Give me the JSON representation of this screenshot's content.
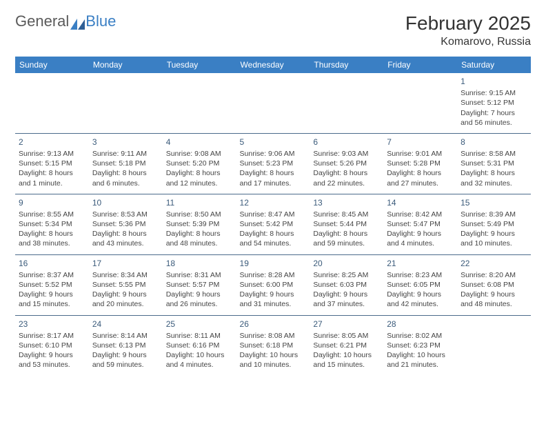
{
  "logo": {
    "word1": "General",
    "word2": "Blue"
  },
  "title": {
    "month": "February 2025",
    "location": "Komarovo, Russia"
  },
  "colors": {
    "header_bg": "#3a7fc4",
    "header_fg": "#ffffff",
    "rule": "#4a6a8a",
    "text": "#444444",
    "daynum": "#3a5a7a",
    "logo_gray": "#5a5a5a",
    "logo_blue": "#3a7fc4",
    "page_bg": "#ffffff"
  },
  "weekdays": [
    "Sunday",
    "Monday",
    "Tuesday",
    "Wednesday",
    "Thursday",
    "Friday",
    "Saturday"
  ],
  "weeks": [
    [
      null,
      null,
      null,
      null,
      null,
      null,
      {
        "n": "1",
        "sr": "Sunrise: 9:15 AM",
        "ss": "Sunset: 5:12 PM",
        "d1": "Daylight: 7 hours",
        "d2": "and 56 minutes."
      }
    ],
    [
      {
        "n": "2",
        "sr": "Sunrise: 9:13 AM",
        "ss": "Sunset: 5:15 PM",
        "d1": "Daylight: 8 hours",
        "d2": "and 1 minute."
      },
      {
        "n": "3",
        "sr": "Sunrise: 9:11 AM",
        "ss": "Sunset: 5:18 PM",
        "d1": "Daylight: 8 hours",
        "d2": "and 6 minutes."
      },
      {
        "n": "4",
        "sr": "Sunrise: 9:08 AM",
        "ss": "Sunset: 5:20 PM",
        "d1": "Daylight: 8 hours",
        "d2": "and 12 minutes."
      },
      {
        "n": "5",
        "sr": "Sunrise: 9:06 AM",
        "ss": "Sunset: 5:23 PM",
        "d1": "Daylight: 8 hours",
        "d2": "and 17 minutes."
      },
      {
        "n": "6",
        "sr": "Sunrise: 9:03 AM",
        "ss": "Sunset: 5:26 PM",
        "d1": "Daylight: 8 hours",
        "d2": "and 22 minutes."
      },
      {
        "n": "7",
        "sr": "Sunrise: 9:01 AM",
        "ss": "Sunset: 5:28 PM",
        "d1": "Daylight: 8 hours",
        "d2": "and 27 minutes."
      },
      {
        "n": "8",
        "sr": "Sunrise: 8:58 AM",
        "ss": "Sunset: 5:31 PM",
        "d1": "Daylight: 8 hours",
        "d2": "and 32 minutes."
      }
    ],
    [
      {
        "n": "9",
        "sr": "Sunrise: 8:55 AM",
        "ss": "Sunset: 5:34 PM",
        "d1": "Daylight: 8 hours",
        "d2": "and 38 minutes."
      },
      {
        "n": "10",
        "sr": "Sunrise: 8:53 AM",
        "ss": "Sunset: 5:36 PM",
        "d1": "Daylight: 8 hours",
        "d2": "and 43 minutes."
      },
      {
        "n": "11",
        "sr": "Sunrise: 8:50 AM",
        "ss": "Sunset: 5:39 PM",
        "d1": "Daylight: 8 hours",
        "d2": "and 48 minutes."
      },
      {
        "n": "12",
        "sr": "Sunrise: 8:47 AM",
        "ss": "Sunset: 5:42 PM",
        "d1": "Daylight: 8 hours",
        "d2": "and 54 minutes."
      },
      {
        "n": "13",
        "sr": "Sunrise: 8:45 AM",
        "ss": "Sunset: 5:44 PM",
        "d1": "Daylight: 8 hours",
        "d2": "and 59 minutes."
      },
      {
        "n": "14",
        "sr": "Sunrise: 8:42 AM",
        "ss": "Sunset: 5:47 PM",
        "d1": "Daylight: 9 hours",
        "d2": "and 4 minutes."
      },
      {
        "n": "15",
        "sr": "Sunrise: 8:39 AM",
        "ss": "Sunset: 5:49 PM",
        "d1": "Daylight: 9 hours",
        "d2": "and 10 minutes."
      }
    ],
    [
      {
        "n": "16",
        "sr": "Sunrise: 8:37 AM",
        "ss": "Sunset: 5:52 PM",
        "d1": "Daylight: 9 hours",
        "d2": "and 15 minutes."
      },
      {
        "n": "17",
        "sr": "Sunrise: 8:34 AM",
        "ss": "Sunset: 5:55 PM",
        "d1": "Daylight: 9 hours",
        "d2": "and 20 minutes."
      },
      {
        "n": "18",
        "sr": "Sunrise: 8:31 AM",
        "ss": "Sunset: 5:57 PM",
        "d1": "Daylight: 9 hours",
        "d2": "and 26 minutes."
      },
      {
        "n": "19",
        "sr": "Sunrise: 8:28 AM",
        "ss": "Sunset: 6:00 PM",
        "d1": "Daylight: 9 hours",
        "d2": "and 31 minutes."
      },
      {
        "n": "20",
        "sr": "Sunrise: 8:25 AM",
        "ss": "Sunset: 6:03 PM",
        "d1": "Daylight: 9 hours",
        "d2": "and 37 minutes."
      },
      {
        "n": "21",
        "sr": "Sunrise: 8:23 AM",
        "ss": "Sunset: 6:05 PM",
        "d1": "Daylight: 9 hours",
        "d2": "and 42 minutes."
      },
      {
        "n": "22",
        "sr": "Sunrise: 8:20 AM",
        "ss": "Sunset: 6:08 PM",
        "d1": "Daylight: 9 hours",
        "d2": "and 48 minutes."
      }
    ],
    [
      {
        "n": "23",
        "sr": "Sunrise: 8:17 AM",
        "ss": "Sunset: 6:10 PM",
        "d1": "Daylight: 9 hours",
        "d2": "and 53 minutes."
      },
      {
        "n": "24",
        "sr": "Sunrise: 8:14 AM",
        "ss": "Sunset: 6:13 PM",
        "d1": "Daylight: 9 hours",
        "d2": "and 59 minutes."
      },
      {
        "n": "25",
        "sr": "Sunrise: 8:11 AM",
        "ss": "Sunset: 6:16 PM",
        "d1": "Daylight: 10 hours",
        "d2": "and 4 minutes."
      },
      {
        "n": "26",
        "sr": "Sunrise: 8:08 AM",
        "ss": "Sunset: 6:18 PM",
        "d1": "Daylight: 10 hours",
        "d2": "and 10 minutes."
      },
      {
        "n": "27",
        "sr": "Sunrise: 8:05 AM",
        "ss": "Sunset: 6:21 PM",
        "d1": "Daylight: 10 hours",
        "d2": "and 15 minutes."
      },
      {
        "n": "28",
        "sr": "Sunrise: 8:02 AM",
        "ss": "Sunset: 6:23 PM",
        "d1": "Daylight: 10 hours",
        "d2": "and 21 minutes."
      },
      null
    ]
  ]
}
